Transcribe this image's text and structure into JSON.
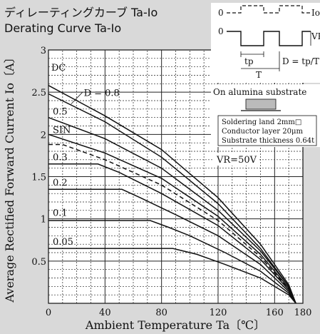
{
  "chart_data": {
    "type": "line",
    "title": "ディレーティングカーブ Ta-Io",
    "subtitle": "Derating Curve Ta-Io",
    "xlabel": "Ambient Temperature Ta〔℃〕",
    "ylabel": "Average Rectified Forward Current Io〔A〕",
    "xlim": [
      0,
      180
    ],
    "ylim": [
      0,
      3
    ],
    "xticks": [
      "0",
      "40",
      "80",
      "120",
      "160",
      "180"
    ],
    "yticks": [
      "0.5",
      "1",
      "1.5",
      "2",
      "2.5",
      "3"
    ],
    "grid": true,
    "series": [
      {
        "name": "DC",
        "style": "solid",
        "x": [
          0,
          40,
          80,
          120,
          150,
          170,
          175
        ],
        "y": [
          2.58,
          2.22,
          1.82,
          1.25,
          0.7,
          0.22,
          0
        ]
      },
      {
        "name": "D = 0.8",
        "style": "solid",
        "x": [
          0,
          40,
          80,
          120,
          150,
          170,
          175
        ],
        "y": [
          2.48,
          2.15,
          1.73,
          1.18,
          0.65,
          0.2,
          0
        ]
      },
      {
        "name": "0.5",
        "style": "solid",
        "x": [
          0,
          40,
          80,
          120,
          150,
          170,
          175
        ],
        "y": [
          2.2,
          1.95,
          1.6,
          1.1,
          0.62,
          0.2,
          0
        ]
      },
      {
        "name": "SIN",
        "style": "solid",
        "x": [
          0,
          40,
          80,
          120,
          150,
          170,
          175
        ],
        "y": [
          2.0,
          1.78,
          1.48,
          1.03,
          0.58,
          0.18,
          0
        ]
      },
      {
        "name": "",
        "style": "dashed",
        "x": [
          0,
          10,
          40,
          80,
          120,
          150,
          170,
          175
        ],
        "y": [
          1.88,
          1.88,
          1.7,
          1.4,
          0.98,
          0.55,
          0.17,
          0
        ]
      },
      {
        "name": "0.3",
        "style": "solid",
        "x": [
          0,
          35,
          50,
          80,
          120,
          150,
          170,
          175
        ],
        "y": [
          1.65,
          1.65,
          1.55,
          1.3,
          0.92,
          0.52,
          0.16,
          0
        ]
      },
      {
        "name": "0.2",
        "style": "solid",
        "x": [
          0,
          52,
          65,
          90,
          120,
          150,
          170,
          175
        ],
        "y": [
          1.35,
          1.35,
          1.25,
          1.05,
          0.8,
          0.46,
          0.14,
          0
        ]
      },
      {
        "name": "0.1",
        "style": "solid",
        "x": [
          0,
          72,
          85,
          100,
          125,
          150,
          170,
          175
        ],
        "y": [
          0.98,
          0.98,
          0.9,
          0.8,
          0.6,
          0.38,
          0.12,
          0
        ]
      },
      {
        "name": "0.05",
        "style": "solid",
        "x": [
          0,
          88,
          105,
          125,
          150,
          170,
          175
        ],
        "y": [
          0.65,
          0.65,
          0.58,
          0.46,
          0.3,
          0.1,
          0
        ]
      }
    ],
    "annotations": [
      "VR=50V"
    ],
    "inset": {
      "wave_labels": [
        "0",
        "0",
        "Io",
        "VR",
        "tp",
        "T",
        "D = tp/T"
      ],
      "substrate": "On alumina substrate",
      "notes": [
        "Soldering land 2mm□",
        "Conductor layer 20μm",
        "Substrate thickness 0.64t"
      ]
    }
  }
}
